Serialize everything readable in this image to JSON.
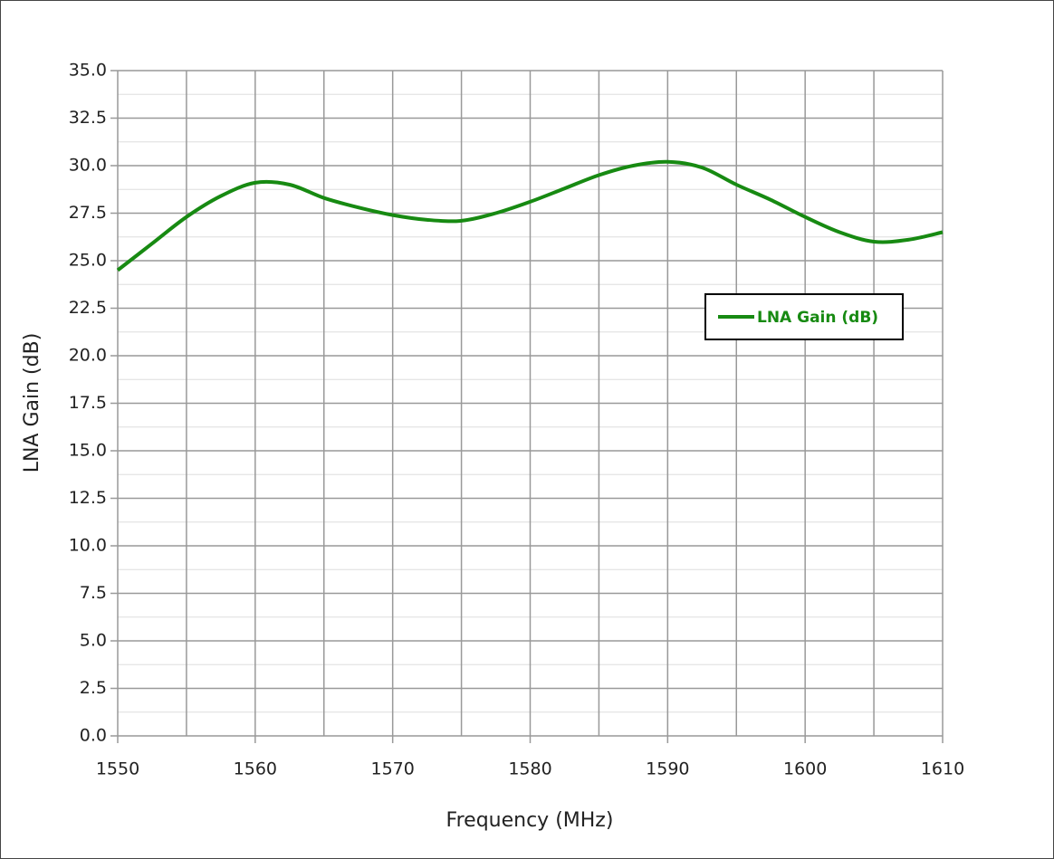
{
  "chart_data": {
    "type": "line",
    "xlabel": "Frequency (MHz)",
    "ylabel": "LNA Gain (dB)",
    "x": [
      1550,
      1552.5,
      1555,
      1557.5,
      1560,
      1562.5,
      1565,
      1567.5,
      1570,
      1572.5,
      1575,
      1577.5,
      1580,
      1582.5,
      1585,
      1587.5,
      1590,
      1592.5,
      1595,
      1597.5,
      1600,
      1602.5,
      1605,
      1607.5,
      1610
    ],
    "series": [
      {
        "name": "LNA Gain (dB)",
        "color": "#178a12",
        "values": [
          24.5,
          25.9,
          27.3,
          28.4,
          29.1,
          29.0,
          28.3,
          27.8,
          27.4,
          27.15,
          27.1,
          27.5,
          28.1,
          28.8,
          29.5,
          30.0,
          30.2,
          29.9,
          29.0,
          28.2,
          27.3,
          26.5,
          26.0,
          26.1,
          26.5
        ]
      }
    ],
    "xlim": [
      1550,
      1610
    ],
    "xticks": [
      1550,
      1560,
      1570,
      1580,
      1590,
      1600,
      1610
    ],
    "xgrid_minor": [
      1555,
      1565,
      1575,
      1585,
      1595,
      1605
    ],
    "ylim": [
      0,
      35
    ],
    "yticks": [
      {
        "value": 0,
        "label": "0.0"
      },
      {
        "value": 2.5,
        "label": "2.5"
      },
      {
        "value": 5,
        "label": "5.0"
      },
      {
        "value": 7.5,
        "label": "7.5"
      },
      {
        "value": 10,
        "label": "10.0"
      },
      {
        "value": 12.5,
        "label": "12.5"
      },
      {
        "value": 15,
        "label": "15.0"
      },
      {
        "value": 17.5,
        "label": "17.5"
      },
      {
        "value": 20,
        "label": "20.0"
      },
      {
        "value": 22.5,
        "label": "22.5"
      },
      {
        "value": 25,
        "label": "25.0"
      },
      {
        "value": 27.5,
        "label": "27.5"
      },
      {
        "value": 30,
        "label": "30.0"
      },
      {
        "value": 32.5,
        "label": "32.5"
      },
      {
        "value": 35,
        "label": "35.0"
      }
    ],
    "grid": true
  }
}
